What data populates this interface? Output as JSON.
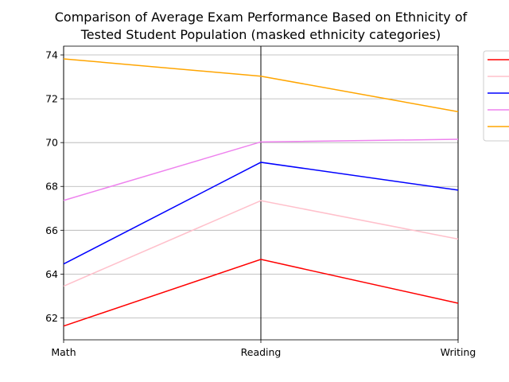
{
  "chart_data": {
    "type": "line",
    "title_lines": [
      "Comparison of Average Exam Performance Based on Ethnicity of",
      "Tested Student Population (masked ethnicity categories)"
    ],
    "categories": [
      "Math",
      "Reading",
      "Writing"
    ],
    "ylim": [
      61.0,
      74.4
    ],
    "yticks": [
      62,
      64,
      66,
      68,
      70,
      72,
      74
    ],
    "grid": true,
    "legend_placement": "outside-right",
    "series": [
      {
        "color": "#ff0000",
        "values": [
          61.63,
          64.67,
          62.67
        ]
      },
      {
        "color": "#ffc0cb",
        "values": [
          63.45,
          67.35,
          65.6
        ]
      },
      {
        "color": "#0000ff",
        "values": [
          64.46,
          69.1,
          67.83
        ]
      },
      {
        "color": "#ee82ee",
        "values": [
          67.36,
          70.03,
          70.15
        ]
      },
      {
        "color": "#ffa500",
        "values": [
          73.82,
          73.03,
          71.41
        ]
      }
    ]
  }
}
